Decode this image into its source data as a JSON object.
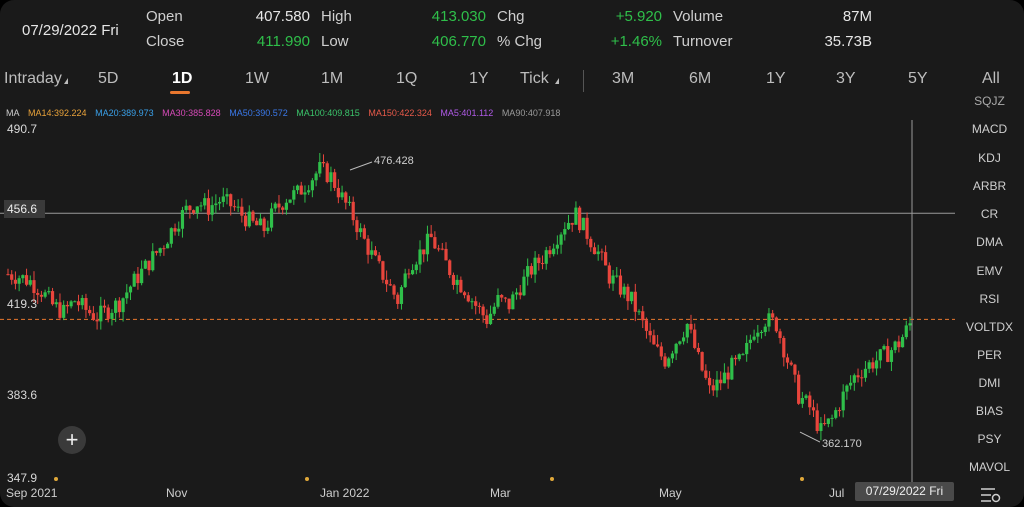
{
  "quote": {
    "date": "07/29/2022 Fri",
    "open_label": "Open",
    "open": "407.580",
    "close_label": "Close",
    "close": "411.990",
    "high_label": "High",
    "high": "413.030",
    "low_label": "Low",
    "low": "406.770",
    "chg_label": "Chg",
    "chg": "+5.920",
    "pchg_label": "% Chg",
    "pchg": "+1.46%",
    "volume_label": "Volume",
    "volume": "87M",
    "turnover_label": "Turnover",
    "turnover": "35.73B"
  },
  "periods": [
    "Intraday",
    "5D",
    "1D",
    "1W",
    "1M",
    "1Q",
    "1Y",
    "Tick",
    "3M",
    "6M",
    "1Y",
    "3Y",
    "5Y",
    "All"
  ],
  "active_period": "1D",
  "ma_legend": [
    {
      "text": "MA",
      "color": "#cfcfcf"
    },
    {
      "text": "MA14:392.224",
      "color": "#e8a23a"
    },
    {
      "text": "MA20:389.973",
      "color": "#3aa0e8"
    },
    {
      "text": "MA30:385.828",
      "color": "#d64ab8"
    },
    {
      "text": "MA50:390.572",
      "color": "#3a78e8"
    },
    {
      "text": "MA100:409.815",
      "color": "#3ac36a"
    },
    {
      "text": "MA150:422.324",
      "color": "#e85a4a"
    },
    {
      "text": "MA5:401.112",
      "color": "#b05ae8"
    },
    {
      "text": "MA90:407.918",
      "color": "#9a9a9a"
    }
  ],
  "indicators": [
    "SQJZ",
    "MACD",
    "KDJ",
    "ARBR",
    "CR",
    "DMA",
    "EMV",
    "RSI",
    "VOLTDX",
    "PER",
    "DMI",
    "BIAS",
    "PSY",
    "MAVOL"
  ],
  "y_labels": [
    "490.7",
    "419.3",
    "383.6",
    "347.9"
  ],
  "y_cursor_label": "456.6",
  "x_labels": [
    "Sep 2021",
    "Nov",
    "Jan 2022",
    "Mar",
    "May",
    "Jul"
  ],
  "cursor_date": "07/29/2022 Fri",
  "colors": {
    "up": "#2fbf4a",
    "down": "#e8453c",
    "accent": "#e8772e",
    "background": "#1a1a1a"
  },
  "chart_data": {
    "type": "candlestick",
    "y_range": [
      347.9,
      490.7
    ],
    "x_range": [
      "Sep 2021",
      "Jul 2022"
    ],
    "annotations": [
      {
        "text": "476.428",
        "label": "high"
      },
      {
        "text": "362.170",
        "label": "low"
      }
    ],
    "crosshair_value": 456.6,
    "reference_line_value": 411.99,
    "series": [
      {
        "name": "close",
        "values": [
          431,
          430,
          428,
          424,
          418,
          415,
          420,
          416,
          413,
          416,
          419,
          426,
          432,
          438,
          444,
          452,
          458,
          461,
          459,
          462,
          460,
          456,
          452,
          450,
          458,
          463,
          465,
          470,
          475,
          472,
          463,
          455,
          445,
          436,
          428,
          420,
          435,
          440,
          446,
          438,
          430,
          425,
          418,
          412,
          420,
          418,
          426,
          433,
          438,
          445,
          452,
          456,
          448,
          440,
          430,
          425,
          420,
          410,
          400,
          395,
          403,
          410,
          395,
          382,
          386,
          392,
          395,
          408,
          412,
          410,
          395,
          380,
          375,
          365,
          370,
          380,
          388,
          392,
          395,
          398,
          402,
          410
        ]
      }
    ]
  }
}
